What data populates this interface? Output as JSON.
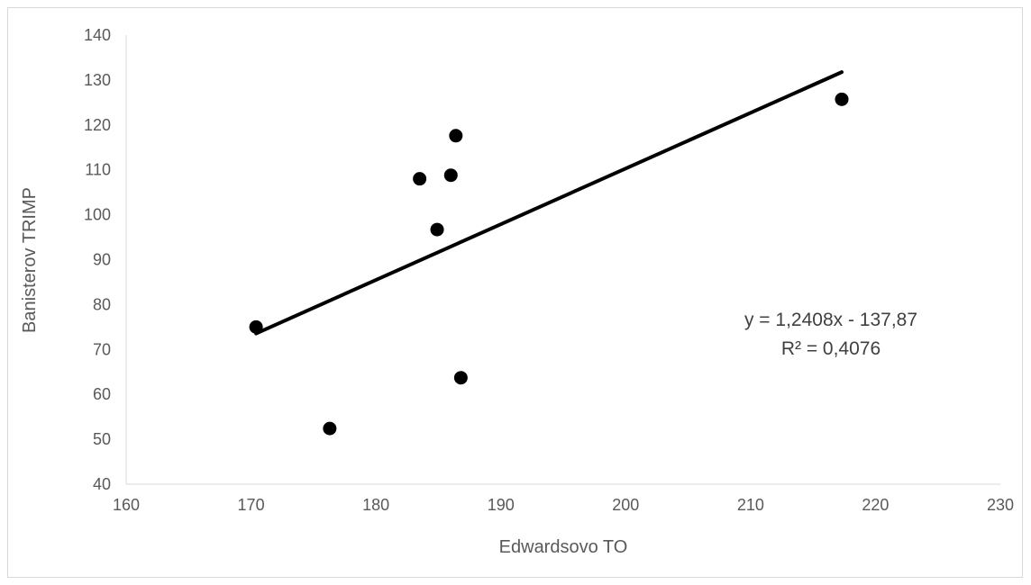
{
  "chart_data": {
    "type": "scatter",
    "title": "",
    "xlabel": "Edwardsovo TO",
    "ylabel": "Banisterov TRIMP",
    "xlim": [
      160,
      230
    ],
    "ylim": [
      40,
      140
    ],
    "xticks": [
      160,
      170,
      180,
      190,
      200,
      210,
      220,
      230
    ],
    "yticks": [
      40,
      50,
      60,
      70,
      80,
      90,
      100,
      110,
      120,
      130,
      140
    ],
    "grid": false,
    "points": [
      {
        "x": 170.4,
        "y": 75
      },
      {
        "x": 176.3,
        "y": 52.4
      },
      {
        "x": 183.5,
        "y": 108
      },
      {
        "x": 184.9,
        "y": 96.7
      },
      {
        "x": 186.0,
        "y": 108.8
      },
      {
        "x": 186.4,
        "y": 117.6
      },
      {
        "x": 186.8,
        "y": 63.7
      },
      {
        "x": 217.3,
        "y": 125.7
      }
    ],
    "trendline": {
      "type": "linear",
      "slope": 1.2408,
      "intercept": -137.87,
      "x_start": 170.4,
      "x_end": 217.3
    },
    "equation_text": "y = 1,2408x - 137,87",
    "r2_text": "R² = 0,4076",
    "colors": {
      "points": "#000000",
      "trendline": "#000000",
      "axis": "#d9d9d9",
      "text": "#595959"
    }
  }
}
